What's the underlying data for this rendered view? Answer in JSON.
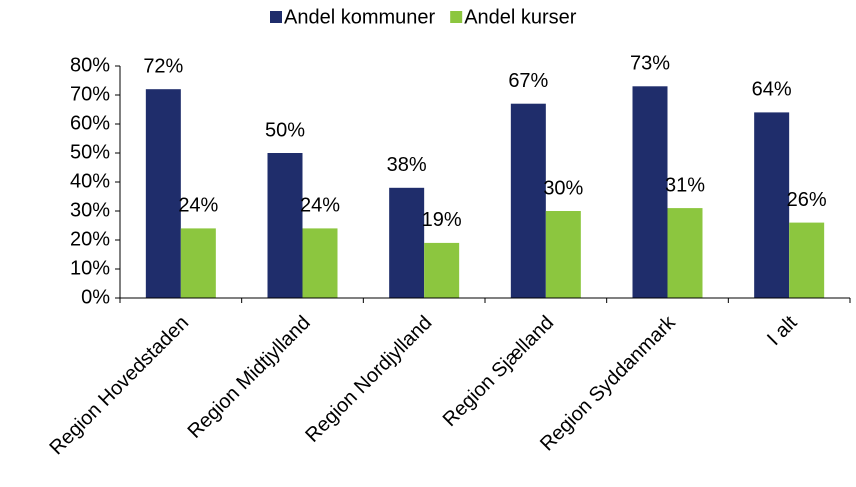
{
  "chart_data": {
    "type": "bar",
    "categories": [
      "Region Hovedstaden",
      "Region Midtjylland",
      "Region Nordjylland",
      "Region Sjælland",
      "Region Syddanmark",
      "I alt"
    ],
    "series": [
      {
        "name": "Andel kommuner",
        "color": "#1f2d6b",
        "values": [
          72,
          50,
          38,
          67,
          73,
          64
        ],
        "value_labels": [
          "72%",
          "50%",
          "38%",
          "67%",
          "73%",
          "64%"
        ]
      },
      {
        "name": "Andel kurser",
        "color": "#8cc63f",
        "values": [
          24,
          24,
          19,
          30,
          31,
          26
        ],
        "value_labels": [
          "24%",
          "24%",
          "19%",
          "30%",
          "31%",
          "26%"
        ]
      }
    ],
    "ylim": [
      0,
      80
    ],
    "yticks": [
      {
        "value": 0,
        "label": "0%"
      },
      {
        "value": 10,
        "label": "10%"
      },
      {
        "value": 20,
        "label": "20%"
      },
      {
        "value": 30,
        "label": "30%"
      },
      {
        "value": 40,
        "label": "40%"
      },
      {
        "value": 50,
        "label": "50%"
      },
      {
        "value": 60,
        "label": "60%"
      },
      {
        "value": 70,
        "label": "70%"
      },
      {
        "value": 80,
        "label": "80%"
      }
    ],
    "legend": "top"
  }
}
